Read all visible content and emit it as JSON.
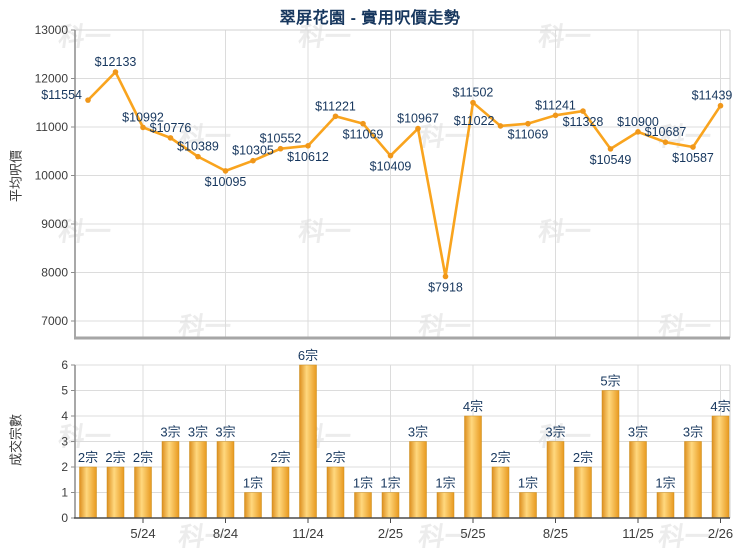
{
  "title": "翠屏花園 - 實用呎價走勢",
  "watermark": {
    "text": "科一"
  },
  "colors": {
    "accent": "#F9A41E",
    "bar_edge": "#DD8F1F",
    "bar_light": "#FFD87E",
    "navy": "#17375E",
    "grid": "#DCDCDC",
    "border_light": "#D2D2D2",
    "axis_gray": "#8C8C8C",
    "axis_dark": "#4A4A4A",
    "tick_text": "#3C3C3C"
  },
  "chart_data": [
    {
      "type": "line",
      "title": "翠屏花園 - 實用呎價走勢",
      "ylabel": "平均呎價",
      "ylim": [
        7000,
        13000
      ],
      "yticks": [
        7000,
        8000,
        9000,
        10000,
        11000,
        12000,
        13000
      ],
      "grid": true,
      "legend": false,
      "n_points": 24,
      "xtick_labels": [
        "5/24",
        "8/24",
        "11/24",
        "2/25",
        "5/25",
        "8/25",
        "11/25",
        "2/26"
      ],
      "xtick_slots": [
        2,
        5,
        8,
        11,
        14,
        17,
        20,
        23
      ],
      "values": [
        11554,
        12133,
        10992,
        10776,
        10389,
        10095,
        10305,
        10552,
        10612,
        11221,
        11069,
        10409,
        10967,
        7918,
        11502,
        11022,
        11069,
        11241,
        11328,
        10549,
        10900,
        10687,
        10587,
        11439
      ],
      "point_labels": [
        "$11554",
        "$12133",
        "$10992",
        "$10776",
        "$10389",
        "$10095",
        "$10305",
        "$10552",
        "$10612",
        "$11221",
        "$11069",
        "$10409",
        "$10967",
        "$7918",
        "$11502",
        "$11022",
        "$11069",
        "$11241",
        "$11328",
        "$10549",
        "$10900",
        "$10687",
        "$10587",
        "$11439"
      ],
      "label_side": [
        "left",
        "above",
        "above",
        "above",
        "above",
        "below",
        "above",
        "above",
        "below",
        "above",
        "below",
        "below",
        "above",
        "below",
        "above",
        "left",
        "below",
        "above",
        "below",
        "below",
        "above",
        "above",
        "below",
        "above"
      ]
    },
    {
      "type": "bar",
      "ylabel": "成交宗數",
      "ylim": [
        0,
        6
      ],
      "yticks": [
        0,
        1,
        2,
        3,
        4,
        5,
        6
      ],
      "grid": true,
      "n_points": 24,
      "xtick_labels": [
        "5/24",
        "8/24",
        "11/24",
        "2/25",
        "5/25",
        "8/25",
        "11/25",
        "2/26"
      ],
      "xtick_slots": [
        2,
        5,
        8,
        11,
        14,
        17,
        20,
        23
      ],
      "values": [
        2,
        2,
        2,
        3,
        3,
        3,
        1,
        2,
        6,
        2,
        1,
        1,
        3,
        1,
        4,
        2,
        1,
        3,
        2,
        5,
        3,
        1,
        3,
        4
      ],
      "bar_labels": [
        "2宗",
        "2宗",
        "2宗",
        "3宗",
        "3宗",
        "3宗",
        "1宗",
        "2宗",
        "6宗",
        "2宗",
        "1宗",
        "1宗",
        "3宗",
        "1宗",
        "4宗",
        "2宗",
        "1宗",
        "3宗",
        "2宗",
        "5宗",
        "3宗",
        "1宗",
        "3宗",
        "4宗"
      ]
    }
  ]
}
